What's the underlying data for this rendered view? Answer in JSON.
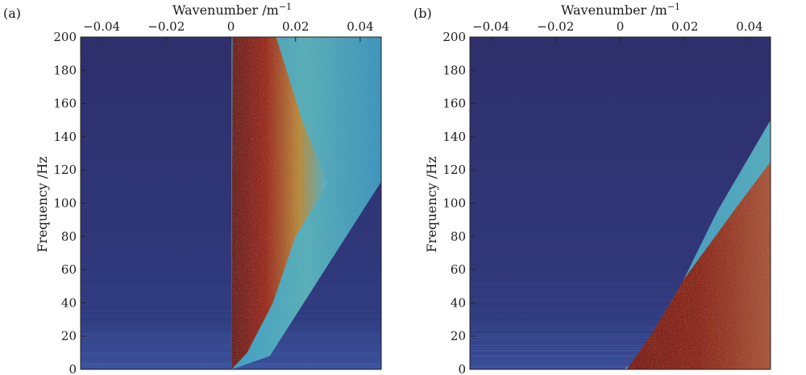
{
  "chart_data": [
    {
      "type": "heatmap",
      "panel_label": "(a)",
      "xlabel": "Wavenumber /m",
      "xlabel_sup": "−1",
      "ylabel": "Frequency /Hz",
      "xlim": [
        -0.0465,
        0.0465
      ],
      "ylim": [
        0,
        200
      ],
      "x_ticks": [
        -0.04,
        -0.02,
        0,
        0.02,
        0.04
      ],
      "x_tick_labels": [
        "−0.04",
        "−0.02",
        "0",
        "0.02",
        "0.04"
      ],
      "y_ticks": [
        0,
        20,
        40,
        60,
        80,
        100,
        120,
        140,
        160,
        180,
        200
      ],
      "y_tick_labels": [
        "0",
        "20",
        "40",
        "60",
        "80",
        "100",
        "120",
        "140",
        "160",
        "180",
        "200"
      ],
      "x_axis_position": "top",
      "colormap": "jet",
      "colors": {
        "low": "#2a2f6e",
        "mid": "#3fb4d6",
        "high": "#8a1e16"
      }
    },
    {
      "type": "heatmap",
      "panel_label": "(b)",
      "xlabel": "Wavenumber /m",
      "xlabel_sup": "−1",
      "ylabel": "Frequency /Hz",
      "xlim": [
        -0.0465,
        0.0465
      ],
      "ylim": [
        0,
        200
      ],
      "x_ticks": [
        -0.04,
        -0.02,
        0,
        0.02,
        0.04
      ],
      "x_tick_labels": [
        "−0.04",
        "−0.02",
        "0",
        "0.02",
        "0.04"
      ],
      "y_ticks": [
        0,
        20,
        40,
        60,
        80,
        100,
        120,
        140,
        160,
        180,
        200
      ],
      "y_tick_labels": [
        "0",
        "20",
        "40",
        "60",
        "80",
        "100",
        "120",
        "140",
        "160",
        "180",
        "200"
      ],
      "x_axis_position": "top",
      "colormap": "jet",
      "colors": {
        "low": "#2a2f6e",
        "mid": "#3fb4d6",
        "high": "#8a1e16"
      }
    }
  ]
}
